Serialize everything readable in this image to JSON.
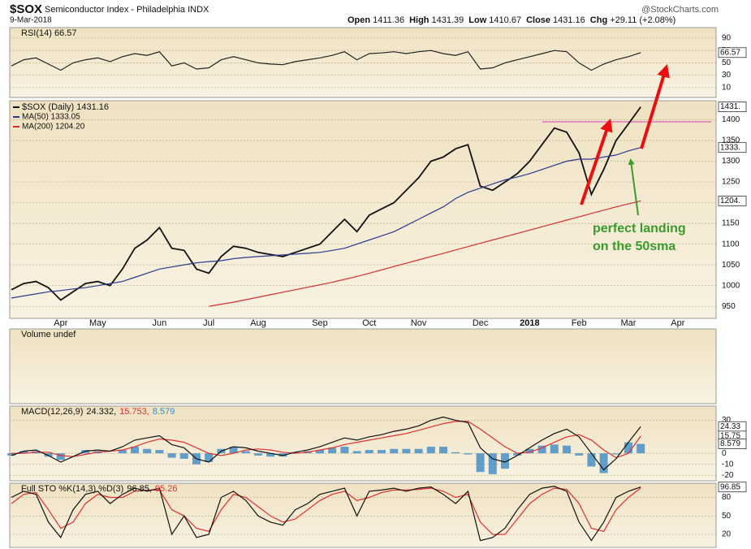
{
  "header": {
    "symbol": "$SOX",
    "name": "Semiconductor Index - Philadelphia INDX",
    "date": "9-Mar-2018",
    "quote": [
      [
        "Open",
        "1411.36"
      ],
      [
        "High",
        "1431.39"
      ],
      [
        "Low",
        "1410.67"
      ],
      [
        "Close",
        "1431.16"
      ],
      [
        "Chg",
        "+29.11 (+2.08%)"
      ]
    ],
    "source": "@StockCharts.com"
  },
  "chart_data": [
    {
      "type": "line",
      "title": "RSI(14) 66.57",
      "ylim": [
        -6,
        107
      ],
      "yticks": [
        10,
        30,
        50,
        70,
        90
      ],
      "grid": true,
      "right_labels": [
        66.57
      ],
      "series": [
        {
          "color": "#222222",
          "values": [
            45,
            55,
            58,
            48,
            38,
            50,
            55,
            58,
            52,
            60,
            65,
            62,
            68,
            45,
            50,
            40,
            42,
            55,
            60,
            55,
            50,
            48,
            47,
            52,
            55,
            58,
            62,
            68,
            55,
            65,
            66,
            68,
            65,
            68,
            70,
            65,
            62,
            68,
            40,
            42,
            50,
            55,
            60,
            65,
            70,
            68,
            50,
            38,
            48,
            55,
            60,
            66.57,
            null,
            null,
            null,
            null,
            null,
            null
          ]
        }
      ]
    },
    {
      "type": "line",
      "ylim": [
        921,
        1446
      ],
      "yticks": [
        950,
        1000,
        1050,
        1100,
        1150,
        1200,
        1250,
        1300,
        1350,
        1400
      ],
      "grid": true,
      "categories": [
        null,
        null,
        null,
        null,
        "Apr",
        null,
        null,
        "May",
        null,
        null,
        null,
        null,
        "Jun",
        null,
        null,
        null,
        "Jul",
        null,
        null,
        null,
        "Aug",
        null,
        null,
        null,
        null,
        "Sep",
        null,
        null,
        null,
        "Oct",
        null,
        null,
        null,
        "Nov",
        null,
        null,
        null,
        null,
        "Dec",
        null,
        null,
        null,
        "2018",
        null,
        null,
        null,
        "Feb",
        null,
        null,
        null,
        "Mar",
        null,
        null,
        null,
        "Apr",
        null,
        null,
        null
      ],
      "right_labels": [
        {
          "value": 1431.16,
          "label": "1431."
        },
        {
          "value": 1333.05,
          "label": "1333."
        },
        {
          "value": 1204.2,
          "label": "1204."
        }
      ],
      "resistance": 1395,
      "annotation": [
        "perfect landing",
        "on the 50sma"
      ],
      "series": [
        {
          "name": "$SOX (Daily) 1431.16",
          "color": "#111111",
          "values": [
            990,
            1005,
            1010,
            995,
            965,
            985,
            1005,
            1010,
            1000,
            1040,
            1090,
            1110,
            1140,
            1090,
            1085,
            1040,
            1030,
            1070,
            1095,
            1090,
            1080,
            1075,
            1070,
            1080,
            1090,
            1100,
            1130,
            1160,
            1130,
            1170,
            1185,
            1200,
            1230,
            1260,
            1300,
            1310,
            1330,
            1340,
            1240,
            1230,
            1250,
            1270,
            1300,
            1340,
            1380,
            1370,
            1320,
            1220,
            1280,
            1350,
            1390,
            1431.16,
            null,
            null,
            null,
            null,
            null,
            null
          ]
        },
        {
          "name": "MA(50) 1333.05",
          "color": "#2a3a8c",
          "values": [
            970,
            975,
            980,
            985,
            988,
            992,
            995,
            1000,
            1005,
            1010,
            1020,
            1030,
            1040,
            1045,
            1050,
            1055,
            1058,
            1060,
            1065,
            1068,
            1070,
            1072,
            1074,
            1076,
            1078,
            1080,
            1085,
            1090,
            1100,
            1110,
            1120,
            1130,
            1145,
            1160,
            1175,
            1190,
            1210,
            1225,
            1235,
            1245,
            1255,
            1262,
            1270,
            1280,
            1290,
            1300,
            1305,
            1305,
            1310,
            1315,
            1325,
            1333.05,
            null,
            null,
            null,
            null,
            null,
            null
          ]
        },
        {
          "name": "MA(200) 1204.20",
          "color": "#d03030",
          "values": [
            null,
            null,
            null,
            null,
            null,
            null,
            null,
            null,
            null,
            null,
            null,
            null,
            null,
            null,
            null,
            null,
            950,
            955,
            960,
            966,
            972,
            978,
            984,
            990,
            996,
            1002,
            1008,
            1015,
            1022,
            1030,
            1038,
            1046,
            1054,
            1062,
            1070,
            1078,
            1086,
            1094,
            1102,
            1110,
            1118,
            1126,
            1134,
            1142,
            1150,
            1158,
            1166,
            1174,
            1182,
            1190,
            1197,
            1204.2,
            null,
            null,
            null,
            null,
            null,
            null
          ]
        }
      ]
    },
    {
      "type": "bar",
      "title": "Volume undef",
      "series": []
    },
    {
      "type": "line",
      "title": "MACD(12,26,9)",
      "legend": [
        {
          "text": "24.332,",
          "color": "#111111"
        },
        {
          "text": "15.753,",
          "color": "#e03030"
        },
        {
          "text": "8.579",
          "color": "#3b8ac4"
        }
      ],
      "ylim": [
        -25,
        43
      ],
      "yticks": [
        -20,
        -10,
        0,
        30
      ],
      "grid": true,
      "right_labels": [
        {
          "value": 24.332,
          "label": "24.33"
        },
        {
          "value": 15.753,
          "label": "15.75"
        },
        8.579
      ],
      "series": [
        {
          "type": "bar",
          "color": "#3b8ac4",
          "values": [
            -2,
            2,
            2,
            -3,
            -6,
            0,
            3,
            2,
            0,
            3,
            6,
            4,
            3,
            -4,
            -5,
            -10,
            -8,
            4,
            6,
            2,
            -2,
            -3,
            -3,
            1,
            2,
            3,
            5,
            6,
            2,
            3,
            3,
            4,
            4,
            4,
            6,
            6,
            1,
            -1,
            -17,
            -19,
            -14,
            -2,
            4,
            7,
            8,
            7,
            -2,
            -12,
            -18,
            -1,
            10,
            8.579,
            null,
            null,
            null,
            null,
            null,
            null
          ]
        },
        {
          "color": "#e03030",
          "values": [
            0,
            0,
            1,
            1,
            -2,
            -3,
            -1,
            1,
            2,
            3,
            6,
            10,
            13,
            12,
            10,
            5,
            0,
            -2,
            0,
            3,
            4,
            3,
            1,
            0,
            1,
            3,
            5,
            8,
            10,
            12,
            14,
            16,
            18,
            21,
            24,
            27,
            29,
            29,
            22,
            14,
            6,
            0,
            1,
            5,
            10,
            15,
            17,
            12,
            3,
            -4,
            0,
            15.753,
            null,
            null,
            null,
            null,
            null,
            null
          ]
        },
        {
          "color": "#111111",
          "values": [
            -2,
            2,
            3,
            -2,
            -8,
            -3,
            2,
            3,
            2,
            6,
            12,
            14,
            16,
            8,
            5,
            -5,
            -8,
            2,
            6,
            5,
            2,
            0,
            -2,
            1,
            3,
            6,
            10,
            14,
            12,
            15,
            17,
            20,
            22,
            25,
            30,
            33,
            30,
            28,
            5,
            -5,
            -8,
            -2,
            5,
            12,
            18,
            22,
            15,
            0,
            -15,
            -5,
            10,
            24.332,
            null,
            null,
            null,
            null,
            null,
            null
          ]
        }
      ]
    },
    {
      "type": "line",
      "title": "Full STO %K(14,3) %D(3)",
      "legend": [
        {
          "text": "96.85,",
          "color": "#111111"
        },
        {
          "text": "95.26",
          "color": "#e03030"
        }
      ],
      "ylim": [
        -1,
        103
      ],
      "yticks": [
        20,
        50,
        80
      ],
      "grid": true,
      "right_labels": [
        96.85
      ],
      "series": [
        {
          "color": "#e03030",
          "values": [
            70,
            85,
            88,
            60,
            30,
            40,
            70,
            85,
            80,
            80,
            90,
            92,
            92,
            60,
            50,
            30,
            25,
            60,
            85,
            80,
            65,
            50,
            40,
            45,
            60,
            75,
            85,
            90,
            75,
            80,
            88,
            92,
            92,
            93,
            95,
            90,
            80,
            85,
            40,
            20,
            20,
            45,
            70,
            85,
            95,
            93,
            70,
            30,
            25,
            60,
            80,
            95.26,
            null,
            null,
            null,
            null,
            null,
            null
          ]
        },
        {
          "color": "#111111",
          "values": [
            80,
            90,
            85,
            40,
            15,
            60,
            85,
            90,
            70,
            85,
            95,
            90,
            95,
            20,
            50,
            15,
            20,
            80,
            90,
            75,
            50,
            40,
            35,
            60,
            70,
            85,
            90,
            95,
            50,
            90,
            92,
            95,
            90,
            95,
            97,
            85,
            70,
            90,
            10,
            15,
            30,
            60,
            85,
            95,
            98,
            90,
            40,
            10,
            40,
            80,
            90,
            96.85,
            null,
            null,
            null,
            null,
            null,
            null
          ]
        }
      ]
    }
  ]
}
